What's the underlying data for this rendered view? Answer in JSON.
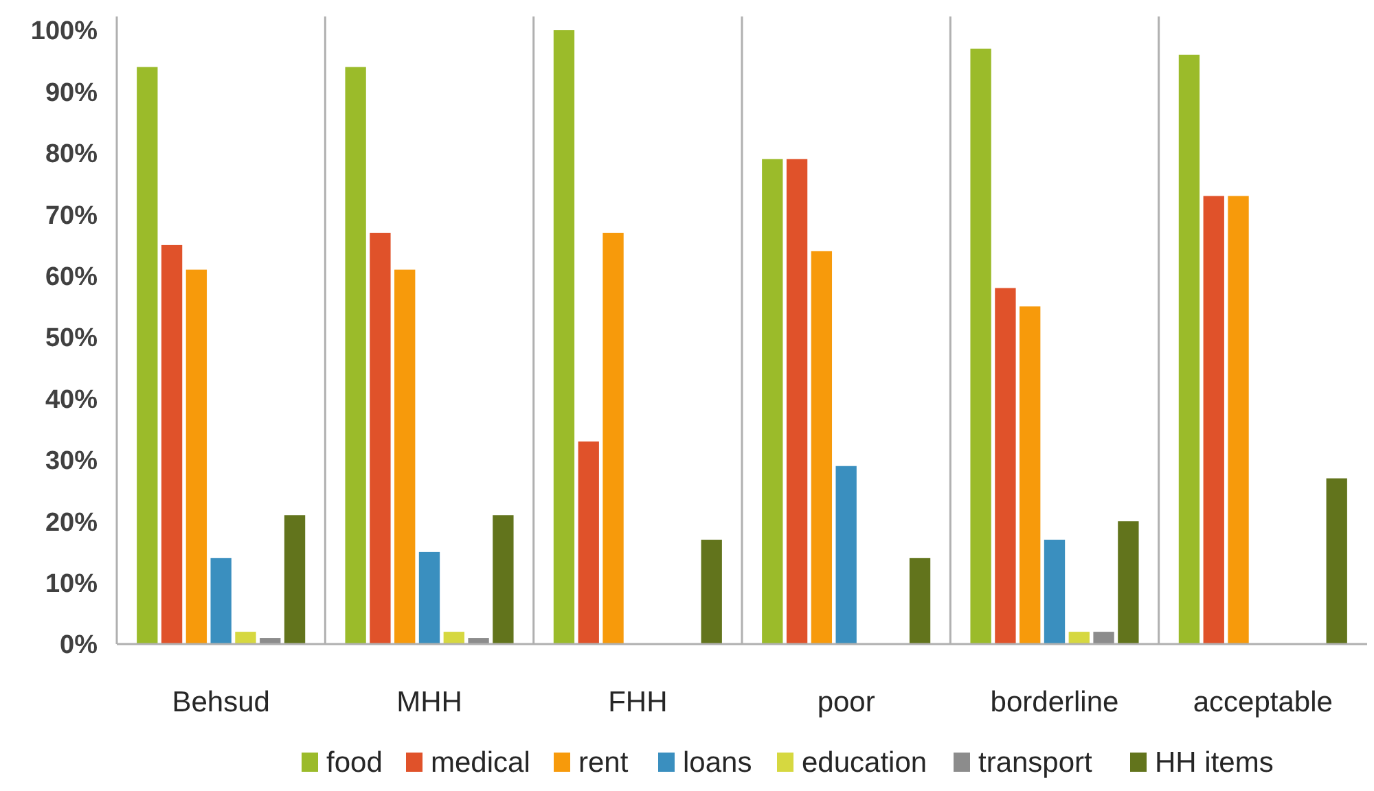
{
  "chart_data": {
    "type": "bar",
    "categories": [
      "Behsud",
      "MHH",
      "FHH",
      "poor",
      "borderline",
      "acceptable"
    ],
    "series": [
      {
        "name": "food",
        "color": "#9bbb2a",
        "values": [
          94,
          94,
          100,
          79,
          97,
          96
        ]
      },
      {
        "name": "medical",
        "color": "#e0522a",
        "values": [
          65,
          67,
          33,
          79,
          58,
          73
        ]
      },
      {
        "name": "rent",
        "color": "#f79a0b",
        "values": [
          61,
          61,
          67,
          64,
          55,
          73
        ]
      },
      {
        "name": "loans",
        "color": "#3a8fbf",
        "values": [
          14,
          15,
          0,
          29,
          17,
          0
        ]
      },
      {
        "name": "education",
        "color": "#d6d840",
        "values": [
          2,
          2,
          0,
          0,
          2,
          0
        ]
      },
      {
        "name": "transport",
        "color": "#8c8c8c",
        "values": [
          1,
          1,
          0,
          0,
          2,
          0
        ]
      },
      {
        "name": "HH items",
        "color": "#62741c",
        "values": [
          21,
          21,
          17,
          14,
          20,
          27
        ]
      }
    ],
    "ylim": [
      0,
      100
    ],
    "yticks": [
      {
        "value": 0,
        "label": "0%"
      },
      {
        "value": 10,
        "label": "10%"
      },
      {
        "value": 20,
        "label": "20%"
      },
      {
        "value": 30,
        "label": "30%"
      },
      {
        "value": 40,
        "label": "40%"
      },
      {
        "value": 50,
        "label": "50%"
      },
      {
        "value": 60,
        "label": "60%"
      },
      {
        "value": 70,
        "label": "70%"
      },
      {
        "value": 80,
        "label": "80%"
      },
      {
        "value": 90,
        "label": "90%"
      },
      {
        "value": 100,
        "label": "100%"
      }
    ],
    "grid": "x",
    "legend": "bottom"
  }
}
